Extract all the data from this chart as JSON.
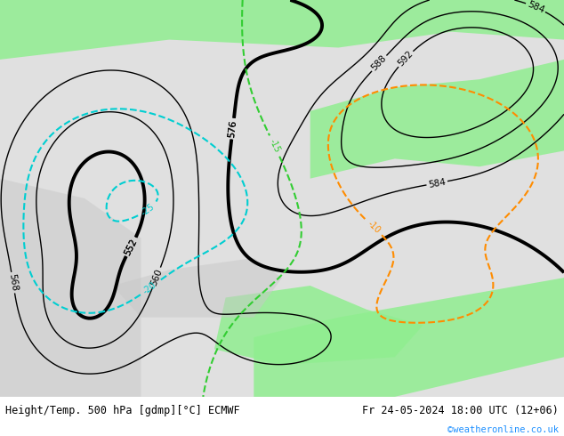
{
  "title_left": "Height/Temp. 500 hPa [gdmp][°C] ECMWF",
  "title_right": "Fr 24-05-2024 18:00 UTC (12+06)",
  "credit": "©weatheronline.co.uk",
  "bg_color": "#d0d0d0",
  "map_bg_light": "#e8e8e8",
  "green_fill": "#90ee90",
  "bottom_bar_color": "#f0f0f0",
  "z500_contour_color": "#000000",
  "z500_thick_color": "#000000",
  "temp_pos_color": "#ff8c00",
  "temp_neg_color": "#00ced1",
  "temp_neg2_color": "#32cd32",
  "bottom_text_color": "#000000",
  "credit_color": "#1e90ff",
  "figsize": [
    6.34,
    4.9
  ],
  "dpi": 100
}
